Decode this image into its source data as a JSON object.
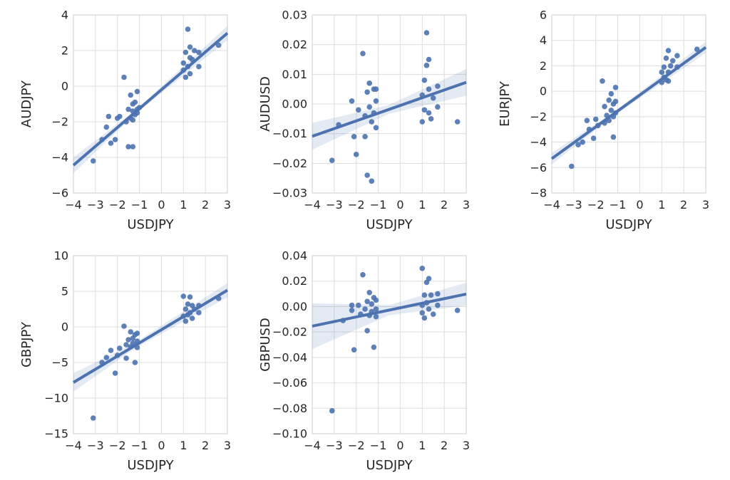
{
  "colors": {
    "series": "#4c72b0",
    "grid": "#dddddd",
    "frame": "#cccccc",
    "text": "#262626"
  },
  "chart_data": [
    {
      "type": "scatter",
      "xlabel": "USDJPY",
      "ylabel": "AUDJPY",
      "xlim": [
        -4,
        3
      ],
      "ylim": [
        -6,
        4
      ],
      "xticks": [
        "−4",
        "−3",
        "−2",
        "−1",
        "0",
        "1",
        "2",
        "3"
      ],
      "yticks": [
        "−6",
        "−4",
        "−2",
        "0",
        "2",
        "4"
      ],
      "fit": {
        "intercept": -0.2,
        "slope": 1.06,
        "ci": [
          [
            -4,
            0.45
          ],
          [
            -1.2,
            0.1
          ],
          [
            3,
            0.4
          ]
        ]
      },
      "points": [
        [
          -3.1,
          -4.2
        ],
        [
          -2.7,
          -3.0
        ],
        [
          -2.5,
          -2.3
        ],
        [
          -2.4,
          -1.7
        ],
        [
          -2.3,
          -3.2
        ],
        [
          -2.1,
          -3.0
        ],
        [
          -2.0,
          -1.8
        ],
        [
          -1.9,
          -1.7
        ],
        [
          -1.7,
          0.5
        ],
        [
          -1.6,
          -2.0
        ],
        [
          -1.5,
          -3.4
        ],
        [
          -1.5,
          -1.3
        ],
        [
          -1.4,
          -1.8
        ],
        [
          -1.4,
          -0.5
        ],
        [
          -1.3,
          -1.0
        ],
        [
          -1.3,
          -1.4
        ],
        [
          -1.3,
          -1.9
        ],
        [
          -1.3,
          -3.4
        ],
        [
          -1.2,
          -1.6
        ],
        [
          -1.2,
          -0.9
        ],
        [
          -1.1,
          -1.3
        ],
        [
          -1.1,
          -0.3
        ],
        [
          -1.1,
          -1.5
        ],
        [
          -1.0,
          -1.2
        ],
        [
          1.0,
          1.3
        ],
        [
          1.0,
          0.9
        ],
        [
          1.1,
          0.5
        ],
        [
          1.1,
          1.9
        ],
        [
          1.2,
          3.2
        ],
        [
          1.2,
          1.1
        ],
        [
          1.3,
          0.7
        ],
        [
          1.3,
          1.6
        ],
        [
          1.3,
          2.2
        ],
        [
          1.4,
          1.5
        ],
        [
          1.5,
          2.0
        ],
        [
          1.7,
          1.1
        ],
        [
          1.7,
          1.9
        ],
        [
          2.6,
          2.3
        ]
      ]
    },
    {
      "type": "scatter",
      "xlabel": "USDJPY",
      "ylabel": "AUDUSD",
      "xlim": [
        -4,
        3
      ],
      "ylim": [
        -0.03,
        0.03
      ],
      "xticks": [
        "−4",
        "−3",
        "−2",
        "−1",
        "0",
        "1",
        "2",
        "3"
      ],
      "yticks": [
        "−0.03",
        "−0.02",
        "−0.01",
        "0.00",
        "0.01",
        "0.02",
        "0.03"
      ],
      "fit": {
        "intercept": -0.0005,
        "slope": 0.0026,
        "ci": [
          [
            -4,
            0.0045
          ],
          [
            -0.5,
            0.0015
          ],
          [
            3,
            0.0045
          ]
        ]
      },
      "points": [
        [
          -3.1,
          -0.019
        ],
        [
          -2.8,
          -0.007
        ],
        [
          -2.2,
          0.001
        ],
        [
          -2.1,
          -0.011
        ],
        [
          -2.0,
          -0.017
        ],
        [
          -1.9,
          -0.002
        ],
        [
          -1.7,
          0.017
        ],
        [
          -1.6,
          -0.004
        ],
        [
          -1.6,
          -0.011
        ],
        [
          -1.5,
          0.004
        ],
        [
          -1.5,
          -0.024
        ],
        [
          -1.4,
          -0.001
        ],
        [
          -1.4,
          0.007
        ],
        [
          -1.3,
          -0.026
        ],
        [
          -1.3,
          -0.006
        ],
        [
          -1.2,
          0.005
        ],
        [
          -1.2,
          -0.003
        ],
        [
          -1.1,
          -0.008
        ],
        [
          -1.1,
          0.001
        ],
        [
          -1.1,
          0.005
        ],
        [
          1.0,
          0.003
        ],
        [
          1.0,
          -0.006
        ],
        [
          1.1,
          -0.002
        ],
        [
          1.1,
          0.008
        ],
        [
          1.2,
          0.013
        ],
        [
          1.2,
          0.024
        ],
        [
          1.3,
          0.015
        ],
        [
          1.3,
          -0.003
        ],
        [
          1.3,
          0.005
        ],
        [
          1.4,
          -0.005
        ],
        [
          1.5,
          0.002
        ],
        [
          1.7,
          0.006
        ],
        [
          1.7,
          -0.001
        ],
        [
          2.6,
          -0.006
        ]
      ]
    },
    {
      "type": "scatter",
      "xlabel": "USDJPY",
      "ylabel": "EURJPY",
      "xlim": [
        -4,
        3
      ],
      "ylim": [
        -8,
        6
      ],
      "xticks": [
        "−4",
        "−3",
        "−2",
        "−1",
        "0",
        "1",
        "2",
        "3"
      ],
      "yticks": [
        "−8",
        "−6",
        "−4",
        "−2",
        "0",
        "2",
        "4",
        "6"
      ],
      "fit": {
        "intercept": -0.3,
        "slope": 1.25,
        "ci": [
          [
            -4,
            0.45
          ],
          [
            -1.2,
            0.15
          ],
          [
            3,
            0.45
          ]
        ]
      },
      "points": [
        [
          -3.1,
          -5.9
        ],
        [
          -2.8,
          -4.2
        ],
        [
          -2.6,
          -4.0
        ],
        [
          -2.4,
          -2.3
        ],
        [
          -2.3,
          -3.0
        ],
        [
          -2.1,
          -3.7
        ],
        [
          -2.0,
          -2.2
        ],
        [
          -1.9,
          -2.7
        ],
        [
          -1.7,
          0.8
        ],
        [
          -1.6,
          -1.2
        ],
        [
          -1.6,
          -2.5
        ],
        [
          -1.5,
          -1.9
        ],
        [
          -1.4,
          -0.7
        ],
        [
          -1.4,
          -2.3
        ],
        [
          -1.3,
          -1.5
        ],
        [
          -1.3,
          -0.2
        ],
        [
          -1.2,
          -3.6
        ],
        [
          -1.2,
          -1.0
        ],
        [
          -1.2,
          -2.0
        ],
        [
          -1.1,
          0.3
        ],
        [
          -1.1,
          -0.8
        ],
        [
          -1.1,
          -1.7
        ],
        [
          1.0,
          1.5
        ],
        [
          1.0,
          0.7
        ],
        [
          1.1,
          1.9
        ],
        [
          1.1,
          1.1
        ],
        [
          1.2,
          2.6
        ],
        [
          1.2,
          0.9
        ],
        [
          1.3,
          3.2
        ],
        [
          1.3,
          1.5
        ],
        [
          1.3,
          0.8
        ],
        [
          1.4,
          2.0
        ],
        [
          1.5,
          2.4
        ],
        [
          1.7,
          1.9
        ],
        [
          1.7,
          2.8
        ],
        [
          2.6,
          3.3
        ]
      ]
    },
    {
      "type": "scatter",
      "xlabel": "USDJPY",
      "ylabel": "GBPJPY",
      "xlim": [
        -4,
        3
      ],
      "ylim": [
        -15,
        10
      ],
      "xticks": [
        "−4",
        "−3",
        "−2",
        "−1",
        "0",
        "1",
        "2",
        "3"
      ],
      "yticks": [
        "−15",
        "−10",
        "−5",
        "0",
        "5",
        "10"
      ],
      "fit": {
        "intercept": -0.4,
        "slope": 1.85,
        "ci": [
          [
            -4,
            1.3
          ],
          [
            -1.2,
            0.4
          ],
          [
            3,
            1.0
          ]
        ]
      },
      "points": [
        [
          -3.1,
          -12.8
        ],
        [
          -2.7,
          -5.0
        ],
        [
          -2.5,
          -4.3
        ],
        [
          -2.3,
          -3.3
        ],
        [
          -2.1,
          -6.5
        ],
        [
          -2.0,
          -4.0
        ],
        [
          -1.9,
          -3.0
        ],
        [
          -1.7,
          0.1
        ],
        [
          -1.6,
          -2.5
        ],
        [
          -1.6,
          -4.4
        ],
        [
          -1.5,
          -1.8
        ],
        [
          -1.4,
          -2.8
        ],
        [
          -1.4,
          -0.7
        ],
        [
          -1.3,
          -1.6
        ],
        [
          -1.3,
          -2.3
        ],
        [
          -1.2,
          -5.0
        ],
        [
          -1.2,
          -1.1
        ],
        [
          -1.1,
          -2.0
        ],
        [
          -1.1,
          -0.9
        ],
        [
          -1.1,
          -2.9
        ],
        [
          1.0,
          4.3
        ],
        [
          1.0,
          1.5
        ],
        [
          1.1,
          0.8
        ],
        [
          1.1,
          2.5
        ],
        [
          1.2,
          3.2
        ],
        [
          1.2,
          1.7
        ],
        [
          1.3,
          4.2
        ],
        [
          1.3,
          2.0
        ],
        [
          1.4,
          1.2
        ],
        [
          1.4,
          3.0
        ],
        [
          1.5,
          2.5
        ],
        [
          1.7,
          2.0
        ],
        [
          1.7,
          3.0
        ],
        [
          2.6,
          4.0
        ]
      ]
    },
    {
      "type": "scatter",
      "xlabel": "USDJPY",
      "ylabel": "GBPUSD",
      "xlim": [
        -4,
        3
      ],
      "ylim": [
        -0.1,
        0.04
      ],
      "xticks": [
        "−4",
        "−3",
        "−2",
        "−1",
        "0",
        "1",
        "2",
        "3"
      ],
      "yticks": [
        "−0.10",
        "−0.08",
        "−0.06",
        "−0.04",
        "−0.02",
        "0.00",
        "0.02",
        "0.04"
      ],
      "fit": {
        "intercept": -0.001,
        "slope": 0.0036,
        "ci": [
          [
            -4,
            0.018
          ],
          [
            -0.5,
            0.004
          ],
          [
            3,
            0.009
          ]
        ]
      },
      "points": [
        [
          -3.1,
          -0.082
        ],
        [
          -2.6,
          -0.011
        ],
        [
          -2.2,
          -0.003
        ],
        [
          -2.2,
          0.001
        ],
        [
          -2.1,
          -0.034
        ],
        [
          -1.9,
          0.001
        ],
        [
          -1.8,
          -0.006
        ],
        [
          -1.7,
          0.025
        ],
        [
          -1.6,
          -0.002
        ],
        [
          -1.5,
          -0.019
        ],
        [
          -1.5,
          0.004
        ],
        [
          -1.4,
          -0.007
        ],
        [
          -1.4,
          0.011
        ],
        [
          -1.3,
          0.002
        ],
        [
          -1.3,
          -0.004
        ],
        [
          -1.2,
          0.007
        ],
        [
          -1.2,
          -0.032
        ],
        [
          -1.1,
          -0.002
        ],
        [
          -1.1,
          0.005
        ],
        [
          -1.1,
          -0.008
        ],
        [
          1.0,
          0.03
        ],
        [
          1.0,
          0.001
        ],
        [
          1.0,
          -0.005
        ],
        [
          1.1,
          0.009
        ],
        [
          1.1,
          -0.009
        ],
        [
          1.2,
          0.019
        ],
        [
          1.2,
          0.003
        ],
        [
          1.3,
          0.022
        ],
        [
          1.3,
          -0.002
        ],
        [
          1.4,
          0.009
        ],
        [
          1.5,
          -0.006
        ],
        [
          1.7,
          0.01
        ],
        [
          1.7,
          0.001
        ],
        [
          2.6,
          -0.003
        ]
      ]
    }
  ]
}
